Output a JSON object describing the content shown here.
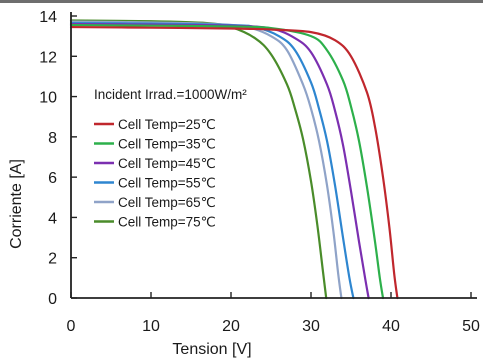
{
  "chart_data": {
    "type": "line",
    "xlabel": "Tension [V]",
    "ylabel": "Corriente [A]",
    "xlim": [
      0,
      50
    ],
    "ylim": [
      0,
      14
    ],
    "xticks": [
      0,
      10,
      20,
      30,
      40,
      50
    ],
    "yticks": [
      0,
      2,
      4,
      6,
      8,
      10,
      12,
      14
    ],
    "grid": false,
    "legend_position": "center-left",
    "annotations": [
      {
        "text": "Incident Irrad.=1000W/m²"
      }
    ],
    "series": [
      {
        "name": "Cell Temp=25℃",
        "color": "#c0272d",
        "isc": 13.45,
        "x": [
          0,
          10,
          20,
          25,
          30,
          33,
          35,
          37,
          38,
          39,
          39.8,
          40.4,
          40.8
        ],
        "y": [
          13.45,
          13.42,
          13.38,
          13.33,
          13.2,
          12.8,
          12.0,
          10.2,
          8.5,
          6.0,
          3.5,
          1.2,
          0
        ]
      },
      {
        "name": "Cell Temp=35℃",
        "color": "#2db04b",
        "isc": 13.55,
        "x": [
          0,
          10,
          20,
          25,
          30,
          32,
          34,
          35,
          36,
          37,
          38,
          38.6,
          39.0
        ],
        "y": [
          13.55,
          13.52,
          13.48,
          13.4,
          13.0,
          12.3,
          10.8,
          9.5,
          7.8,
          5.5,
          2.8,
          1.0,
          0
        ]
      },
      {
        "name": "Cell Temp=45℃",
        "color": "#7b2fb0",
        "isc": 13.6,
        "x": [
          0,
          10,
          20,
          25,
          28,
          30,
          32,
          33,
          34,
          35,
          36,
          36.8,
          37.2
        ],
        "y": [
          13.6,
          13.57,
          13.52,
          13.38,
          12.9,
          12.2,
          10.6,
          9.3,
          7.6,
          5.3,
          2.8,
          0.9,
          0
        ]
      },
      {
        "name": "Cell Temp=55℃",
        "color": "#2e86d0",
        "isc": 13.65,
        "x": [
          0,
          10,
          20,
          23,
          26,
          28,
          30,
          31,
          32,
          33,
          34,
          34.8,
          35.3
        ],
        "y": [
          13.65,
          13.62,
          13.55,
          13.45,
          13.0,
          12.3,
          10.7,
          9.4,
          7.8,
          5.6,
          3.0,
          1.0,
          0
        ]
      },
      {
        "name": "Cell Temp=65℃",
        "color": "#8fa3c8",
        "isc": 13.72,
        "x": [
          0,
          10,
          18,
          22,
          25,
          27,
          29,
          30,
          31,
          32,
          32.8,
          33.4,
          33.8
        ],
        "y": [
          13.72,
          13.68,
          13.6,
          13.45,
          13.0,
          12.3,
          10.6,
          9.4,
          7.8,
          5.6,
          3.3,
          1.2,
          0
        ]
      },
      {
        "name": "Cell Temp=75℃",
        "color": "#4a8c2a",
        "isc": 13.78,
        "x": [
          0,
          10,
          17,
          20,
          23,
          25,
          27,
          28,
          29,
          30,
          30.8,
          31.5,
          31.9
        ],
        "y": [
          13.78,
          13.74,
          13.65,
          13.45,
          12.9,
          12.1,
          10.6,
          9.4,
          7.9,
          5.8,
          3.6,
          1.3,
          0
        ]
      }
    ]
  }
}
